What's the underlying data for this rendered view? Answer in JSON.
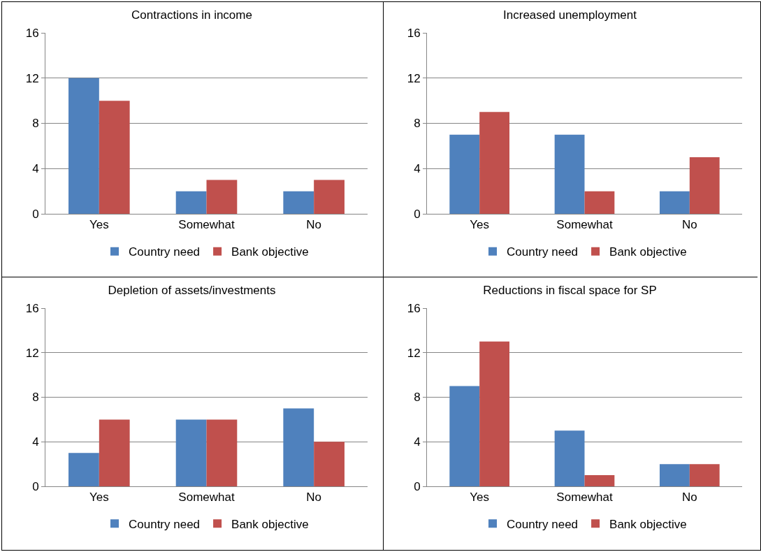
{
  "chart_data": [
    {
      "type": "bar",
      "title": "Contractions in income",
      "categories": [
        "Yes",
        "Somewhat",
        "No"
      ],
      "series": [
        {
          "name": "Country need",
          "color": "#4f81bd",
          "values": [
            12,
            2,
            2
          ]
        },
        {
          "name": "Bank objective",
          "color": "#c0504d",
          "values": [
            10,
            3,
            3
          ]
        }
      ],
      "ylim": [
        0,
        16
      ],
      "yticks": [
        0,
        4,
        8,
        12,
        16
      ],
      "grid": "y",
      "legend": "bottom"
    },
    {
      "type": "bar",
      "title": "Increased unemployment",
      "categories": [
        "Yes",
        "Somewhat",
        "No"
      ],
      "series": [
        {
          "name": "Country need",
          "color": "#4f81bd",
          "values": [
            7,
            7,
            2
          ]
        },
        {
          "name": "Bank objective",
          "color": "#c0504d",
          "values": [
            9,
            2,
            5
          ]
        }
      ],
      "ylim": [
        0,
        16
      ],
      "yticks": [
        0,
        4,
        8,
        12,
        16
      ],
      "grid": "y",
      "legend": "bottom"
    },
    {
      "type": "bar",
      "title": "Depletion of assets/investments",
      "categories": [
        "Yes",
        "Somewhat",
        "No"
      ],
      "series": [
        {
          "name": "Country need",
          "color": "#4f81bd",
          "values": [
            3,
            6,
            7
          ]
        },
        {
          "name": "Bank objective",
          "color": "#c0504d",
          "values": [
            6,
            6,
            4
          ]
        }
      ],
      "ylim": [
        0,
        16
      ],
      "yticks": [
        0,
        4,
        8,
        12,
        16
      ],
      "grid": "y",
      "legend": "bottom"
    },
    {
      "type": "bar",
      "title": "Reductions in fiscal space for SP",
      "categories": [
        "Yes",
        "Somewhat",
        "No"
      ],
      "series": [
        {
          "name": "Country need",
          "color": "#4f81bd",
          "values": [
            9,
            5,
            2
          ]
        },
        {
          "name": "Bank objective",
          "color": "#c0504d",
          "values": [
            13,
            1,
            2
          ]
        }
      ],
      "ylim": [
        0,
        16
      ],
      "yticks": [
        0,
        4,
        8,
        12,
        16
      ],
      "grid": "y",
      "legend": "bottom"
    }
  ]
}
